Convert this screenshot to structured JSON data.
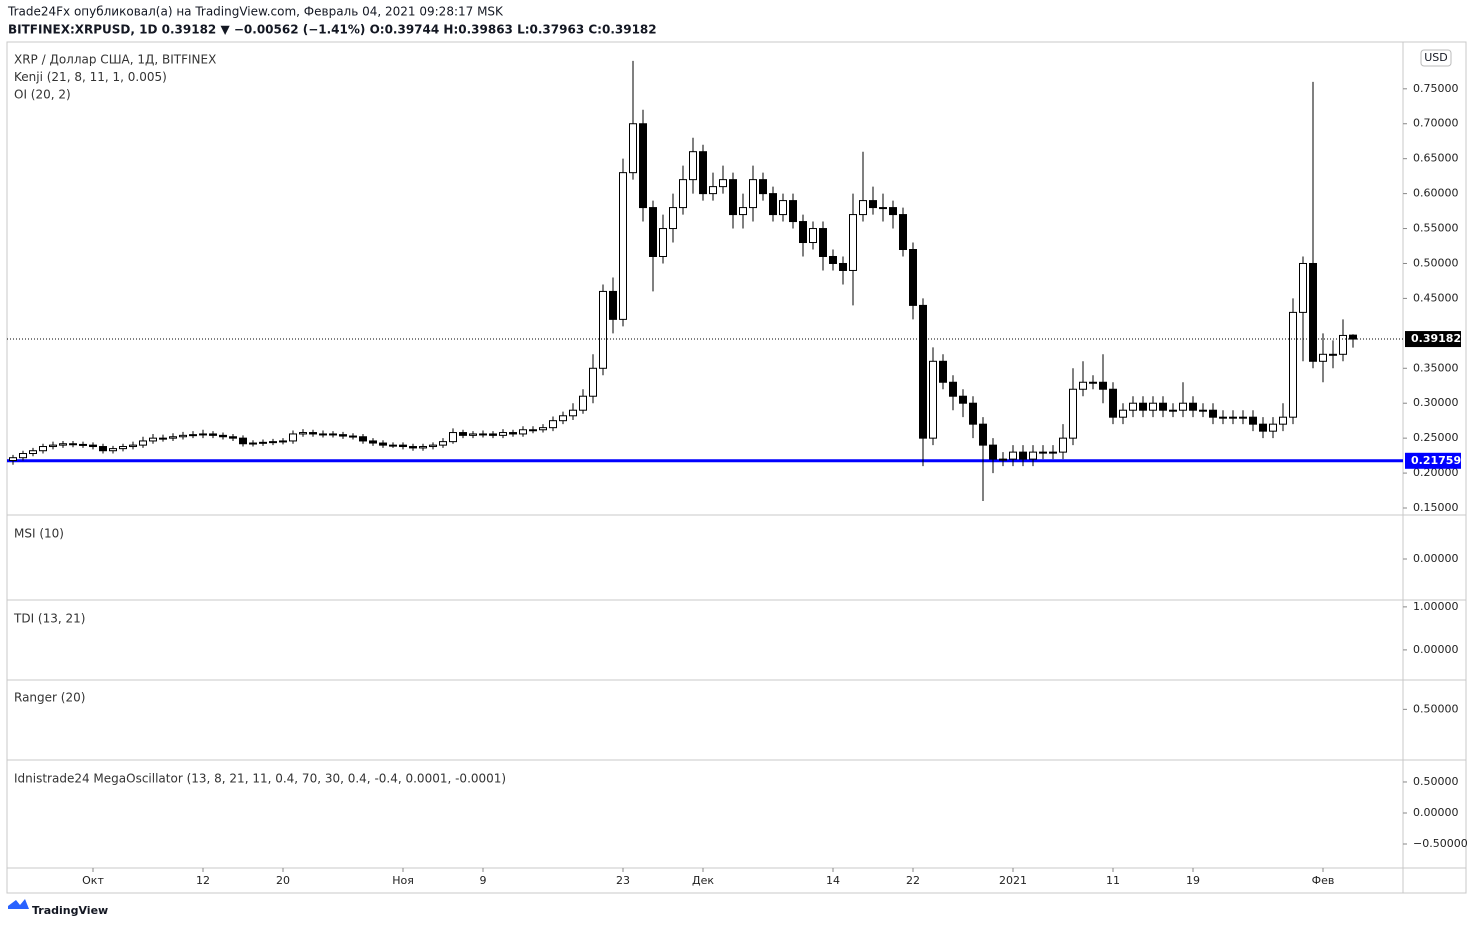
{
  "header": {
    "line1": "Trade24Fx опубликовал(а) на TradingView.com, Февраль 04, 2021 09:28:17 MSK",
    "line2": "BITFINEX:XRPUSD, 1D  0.39182 ▼ −0.00562 (−1.41%) O:0.39744 H:0.39863 L:0.37963 C:0.39182"
  },
  "footer": "TradingView",
  "chart_data": {
    "type": "candlestick",
    "legend": [
      "XRP / Доллар США, 1Д, BITFINEX",
      "Kenji (21, 8, 11, 1, 0.005)",
      "OI (20, 2)"
    ],
    "currency": "USD",
    "xlim": [
      -0.6,
      139
    ],
    "ylim": [
      0.14,
      0.817
    ],
    "xticks": [
      {
        "value": 8,
        "label": "Окт"
      },
      {
        "value": 19,
        "label": "12"
      },
      {
        "value": 27,
        "label": "20"
      },
      {
        "value": 39,
        "label": "Ноя"
      },
      {
        "value": 47,
        "label": "9"
      },
      {
        "value": 61,
        "label": "23"
      },
      {
        "value": 69,
        "label": "Дек"
      },
      {
        "value": 82,
        "label": "14"
      },
      {
        "value": 90,
        "label": "22"
      },
      {
        "value": 100,
        "label": "2021"
      },
      {
        "value": 110,
        "label": "11"
      },
      {
        "value": 118,
        "label": "19"
      },
      {
        "value": 131,
        "label": "Фев"
      }
    ],
    "yticks": [
      {
        "value": 0.15,
        "label": "0.15000"
      },
      {
        "value": 0.2,
        "label": "0.20000"
      },
      {
        "value": 0.25,
        "label": "0.25000"
      },
      {
        "value": 0.3,
        "label": "0.30000"
      },
      {
        "value": 0.35,
        "label": "0.35000"
      },
      {
        "value": 0.45,
        "label": "0.45000"
      },
      {
        "value": 0.5,
        "label": "0.50000"
      },
      {
        "value": 0.55,
        "label": "0.55000"
      },
      {
        "value": 0.6,
        "label": "0.60000"
      },
      {
        "value": 0.65,
        "label": "0.65000"
      },
      {
        "value": 0.7,
        "label": "0.70000"
      },
      {
        "value": 0.75,
        "label": "0.75000"
      }
    ],
    "support_level": 0.21759,
    "support_color": "#0000ff",
    "open": [
      0.218,
      0.222,
      0.228,
      0.232,
      0.238,
      0.24,
      0.242,
      0.241,
      0.24,
      0.238,
      0.232,
      0.235,
      0.238,
      0.24,
      0.246,
      0.25,
      0.25,
      0.252,
      0.254,
      0.255,
      0.256,
      0.254,
      0.252,
      0.25,
      0.242,
      0.243,
      0.244,
      0.245,
      0.246,
      0.256,
      0.258,
      0.256,
      0.256,
      0.255,
      0.253,
      0.252,
      0.246,
      0.243,
      0.24,
      0.24,
      0.238,
      0.236,
      0.238,
      0.24,
      0.245,
      0.258,
      0.254,
      0.256,
      0.256,
      0.254,
      0.258,
      0.256,
      0.262,
      0.262,
      0.265,
      0.275,
      0.282,
      0.29,
      0.31,
      0.35,
      0.46,
      0.42,
      0.63,
      0.7,
      0.58,
      0.51,
      0.55,
      0.58,
      0.62,
      0.66,
      0.6,
      0.61,
      0.62,
      0.57,
      0.58,
      0.62,
      0.6,
      0.57,
      0.59,
      0.56,
      0.53,
      0.55,
      0.51,
      0.5,
      0.49,
      0.57,
      0.59,
      0.58,
      0.58,
      0.57,
      0.52,
      0.44,
      0.25,
      0.36,
      0.33,
      0.31,
      0.3,
      0.27,
      0.24,
      0.22,
      0.22,
      0.23,
      0.22,
      0.23,
      0.23,
      0.23,
      0.25,
      0.32,
      0.33,
      0.33,
      0.32,
      0.28,
      0.29,
      0.3,
      0.29,
      0.3,
      0.29,
      0.29,
      0.3,
      0.29,
      0.29,
      0.28,
      0.28,
      0.28,
      0.28,
      0.27,
      0.26,
      0.27,
      0.28,
      0.43,
      0.5,
      0.36,
      0.37,
      0.37,
      0.39744
    ],
    "high": [
      0.226,
      0.232,
      0.236,
      0.242,
      0.245,
      0.246,
      0.246,
      0.245,
      0.244,
      0.242,
      0.239,
      0.242,
      0.245,
      0.252,
      0.256,
      0.255,
      0.257,
      0.259,
      0.26,
      0.262,
      0.26,
      0.258,
      0.256,
      0.254,
      0.247,
      0.248,
      0.249,
      0.25,
      0.261,
      0.263,
      0.262,
      0.261,
      0.26,
      0.259,
      0.257,
      0.256,
      0.25,
      0.247,
      0.244,
      0.244,
      0.242,
      0.242,
      0.244,
      0.25,
      0.264,
      0.262,
      0.26,
      0.261,
      0.26,
      0.263,
      0.262,
      0.267,
      0.267,
      0.27,
      0.281,
      0.288,
      0.3,
      0.32,
      0.37,
      0.47,
      0.48,
      0.65,
      0.79,
      0.72,
      0.59,
      0.57,
      0.6,
      0.64,
      0.68,
      0.67,
      0.63,
      0.64,
      0.63,
      0.6,
      0.64,
      0.63,
      0.61,
      0.6,
      0.6,
      0.57,
      0.56,
      0.56,
      0.52,
      0.51,
      0.6,
      0.66,
      0.61,
      0.6,
      0.59,
      0.58,
      0.53,
      0.45,
      0.38,
      0.37,
      0.34,
      0.32,
      0.31,
      0.28,
      0.25,
      0.23,
      0.24,
      0.24,
      0.24,
      0.24,
      0.24,
      0.27,
      0.35,
      0.36,
      0.34,
      0.37,
      0.33,
      0.3,
      0.31,
      0.31,
      0.31,
      0.31,
      0.3,
      0.33,
      0.31,
      0.3,
      0.3,
      0.29,
      0.29,
      0.29,
      0.29,
      0.28,
      0.28,
      0.3,
      0.45,
      0.51,
      0.76,
      0.4,
      0.39,
      0.42,
      0.39863
    ],
    "low": [
      0.212,
      0.218,
      0.224,
      0.228,
      0.234,
      0.236,
      0.237,
      0.236,
      0.234,
      0.228,
      0.228,
      0.231,
      0.234,
      0.236,
      0.242,
      0.245,
      0.246,
      0.248,
      0.25,
      0.25,
      0.25,
      0.248,
      0.246,
      0.238,
      0.238,
      0.239,
      0.24,
      0.241,
      0.242,
      0.252,
      0.252,
      0.251,
      0.251,
      0.249,
      0.248,
      0.242,
      0.239,
      0.236,
      0.236,
      0.234,
      0.232,
      0.232,
      0.234,
      0.236,
      0.242,
      0.25,
      0.25,
      0.251,
      0.25,
      0.25,
      0.252,
      0.252,
      0.257,
      0.258,
      0.26,
      0.27,
      0.276,
      0.285,
      0.3,
      0.34,
      0.4,
      0.41,
      0.62,
      0.56,
      0.46,
      0.5,
      0.53,
      0.57,
      0.6,
      0.59,
      0.59,
      0.6,
      0.55,
      0.55,
      0.56,
      0.59,
      0.56,
      0.56,
      0.55,
      0.51,
      0.52,
      0.49,
      0.49,
      0.47,
      0.44,
      0.56,
      0.57,
      0.56,
      0.55,
      0.51,
      0.42,
      0.21,
      0.24,
      0.32,
      0.29,
      0.28,
      0.25,
      0.16,
      0.2,
      0.21,
      0.21,
      0.21,
      0.21,
      0.22,
      0.22,
      0.22,
      0.24,
      0.31,
      0.32,
      0.3,
      0.27,
      0.27,
      0.28,
      0.28,
      0.28,
      0.28,
      0.28,
      0.28,
      0.28,
      0.28,
      0.27,
      0.27,
      0.27,
      0.27,
      0.26,
      0.25,
      0.25,
      0.26,
      0.27,
      0.36,
      0.35,
      0.33,
      0.35,
      0.36,
      0.37963
    ],
    "close": [
      0.222,
      0.228,
      0.232,
      0.238,
      0.24,
      0.242,
      0.241,
      0.24,
      0.238,
      0.232,
      0.235,
      0.238,
      0.24,
      0.246,
      0.25,
      0.25,
      0.252,
      0.254,
      0.255,
      0.256,
      0.254,
      0.252,
      0.25,
      0.242,
      0.243,
      0.244,
      0.245,
      0.246,
      0.256,
      0.258,
      0.256,
      0.256,
      0.255,
      0.253,
      0.252,
      0.246,
      0.243,
      0.24,
      0.24,
      0.238,
      0.236,
      0.238,
      0.24,
      0.245,
      0.258,
      0.254,
      0.256,
      0.256,
      0.254,
      0.258,
      0.256,
      0.262,
      0.262,
      0.265,
      0.275,
      0.282,
      0.29,
      0.31,
      0.35,
      0.46,
      0.42,
      0.63,
      0.7,
      0.58,
      0.51,
      0.55,
      0.58,
      0.62,
      0.66,
      0.6,
      0.61,
      0.62,
      0.57,
      0.58,
      0.62,
      0.6,
      0.57,
      0.59,
      0.56,
      0.53,
      0.55,
      0.51,
      0.5,
      0.49,
      0.57,
      0.59,
      0.58,
      0.58,
      0.57,
      0.52,
      0.44,
      0.25,
      0.36,
      0.33,
      0.31,
      0.3,
      0.27,
      0.24,
      0.22,
      0.22,
      0.23,
      0.22,
      0.23,
      0.23,
      0.23,
      0.25,
      0.32,
      0.33,
      0.33,
      0.32,
      0.28,
      0.29,
      0.3,
      0.29,
      0.3,
      0.29,
      0.29,
      0.3,
      0.29,
      0.29,
      0.28,
      0.28,
      0.28,
      0.28,
      0.27,
      0.26,
      0.27,
      0.28,
      0.43,
      0.5,
      0.36,
      0.37,
      0.37,
      0.397,
      0.39182
    ],
    "indicators": [
      {
        "title": "MSI (10)",
        "ylim": [
          -1,
          1
        ],
        "yticks": [
          {
            "value": 0,
            "label": "0.00000"
          }
        ]
      },
      {
        "title": "TDI (13, 21)",
        "ylim": [
          -0.7,
          1.09
        ],
        "yticks": [
          {
            "value": 1,
            "label": "1.00000"
          },
          {
            "value": 0,
            "label": "0.00000"
          }
        ]
      },
      {
        "title": "Ranger (20)",
        "ylim": [
          0,
          0.77
        ],
        "yticks": [
          {
            "value": 0.5,
            "label": "0.50000"
          }
        ]
      },
      {
        "title": "Idnistrade24 MegaOscillator (13, 8, 21, 11, 0.4, 70, 30, 0.4, -0.4, 0.0001, -0.0001)",
        "ylim": [
          -0.887,
          0.806
        ],
        "yticks": [
          {
            "value": 0.5,
            "label": "0.50000"
          },
          {
            "value": 0,
            "label": "0.00000"
          },
          {
            "value": -0.5,
            "label": "−0.50000"
          }
        ]
      }
    ]
  }
}
